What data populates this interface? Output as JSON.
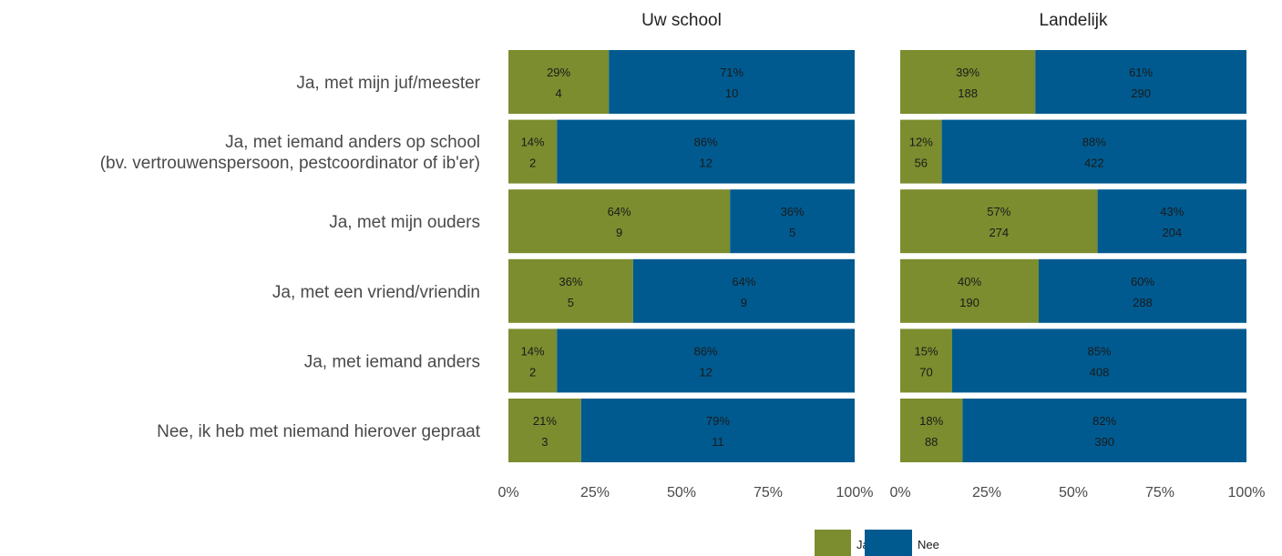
{
  "chart_data": {
    "type": "bar",
    "orientation": "horizontal",
    "stacked": true,
    "percent_scale": true,
    "categories": [
      [
        "Ja, met mijn juf/meester"
      ],
      [
        "Ja, met iemand anders op school",
        "(bv. vertrouwenspersoon, pestcoordinator of ib'er)"
      ],
      [
        "Ja, met mijn ouders"
      ],
      [
        "Ja, met een vriend/vriendin"
      ],
      [
        "Ja, met iemand anders"
      ],
      [
        "Nee, ik heb met niemand hierover gepraat"
      ]
    ],
    "series_legend": [
      {
        "name": "Ja",
        "color": "#7b8d2f"
      },
      {
        "name": "Nee",
        "color": "#005a8f"
      }
    ],
    "panels": [
      {
        "title": "Uw school",
        "ja_pct": [
          29,
          14,
          64,
          36,
          14,
          21
        ],
        "ja_n": [
          4,
          2,
          9,
          5,
          2,
          3
        ],
        "nee_pct": [
          71,
          86,
          36,
          64,
          86,
          79
        ],
        "nee_n": [
          10,
          12,
          5,
          9,
          12,
          11
        ]
      },
      {
        "title": "Landelijk",
        "ja_pct": [
          39,
          12,
          57,
          40,
          15,
          18
        ],
        "ja_n": [
          188,
          56,
          274,
          190,
          70,
          88
        ],
        "nee_pct": [
          61,
          88,
          43,
          60,
          85,
          82
        ],
        "nee_n": [
          290,
          422,
          204,
          288,
          408,
          390
        ]
      }
    ],
    "xticks": [
      "0%",
      "25%",
      "50%",
      "75%",
      "100%"
    ],
    "xlim": [
      0,
      100
    ],
    "legend_position": "bottom",
    "grid": false
  }
}
